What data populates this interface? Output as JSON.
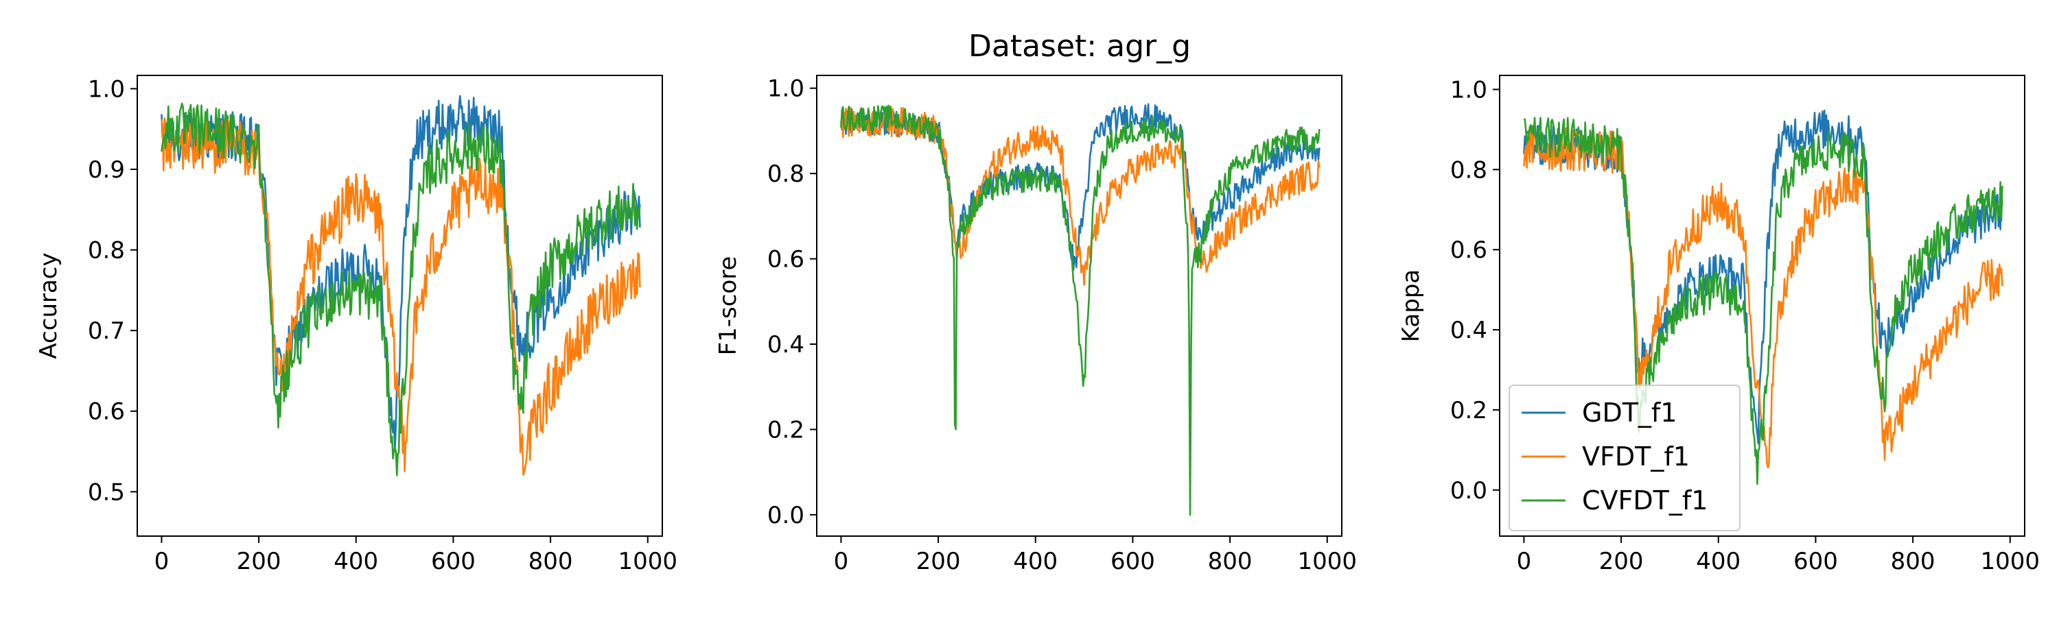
{
  "figure": {
    "suptitle": "Dataset: agr_g"
  },
  "chart_data": [
    {
      "type": "line",
      "title": "",
      "xlabel": "",
      "ylabel": "Accuracy",
      "xlim": [
        -50,
        1030
      ],
      "ylim": [
        0.445,
        1.0165
      ],
      "xticks": [
        0,
        200,
        400,
        600,
        800,
        1000
      ],
      "yticks": [
        0.5,
        0.6,
        0.7,
        0.8,
        0.9,
        1.0
      ],
      "xtick_labels": [
        "0",
        "200",
        "400",
        "600",
        "800",
        "1000"
      ],
      "ytick_labels": [
        "0.5",
        "0.6",
        "0.7",
        "0.8",
        "0.9",
        "1.0"
      ],
      "grid": false,
      "series": [
        {
          "name": "GDT_f1",
          "color": "#1f77b4",
          "noise": 0.032,
          "x": [
            0,
            50,
            100,
            150,
            200,
            220,
            235,
            250,
            300,
            350,
            400,
            450,
            480,
            500,
            520,
            550,
            600,
            650,
            700,
            720,
            740,
            760,
            800,
            850,
            900,
            950,
            985
          ],
          "y": [
            0.94,
            0.94,
            0.94,
            0.94,
            0.93,
            0.82,
            0.65,
            0.66,
            0.72,
            0.76,
            0.78,
            0.77,
            0.55,
            0.82,
            0.93,
            0.95,
            0.96,
            0.96,
            0.94,
            0.75,
            0.68,
            0.7,
            0.74,
            0.78,
            0.82,
            0.84,
            0.85
          ]
        },
        {
          "name": "VFDT_f1",
          "color": "#ff7f0e",
          "noise": 0.035,
          "x": [
            0,
            50,
            100,
            150,
            200,
            220,
            235,
            250,
            300,
            350,
            400,
            450,
            480,
            500,
            520,
            550,
            600,
            650,
            700,
            720,
            740,
            760,
            800,
            850,
            900,
            950,
            985
          ],
          "y": [
            0.93,
            0.93,
            0.93,
            0.93,
            0.92,
            0.8,
            0.64,
            0.63,
            0.78,
            0.83,
            0.87,
            0.84,
            0.65,
            0.56,
            0.7,
            0.78,
            0.85,
            0.88,
            0.88,
            0.75,
            0.55,
            0.57,
            0.63,
            0.68,
            0.73,
            0.76,
            0.77
          ]
        },
        {
          "name": "CVFDT_f1",
          "color": "#2ca02c",
          "noise": 0.032,
          "x": [
            0,
            50,
            100,
            150,
            200,
            220,
            235,
            250,
            300,
            350,
            400,
            450,
            480,
            500,
            520,
            550,
            600,
            650,
            700,
            720,
            740,
            760,
            800,
            850,
            900,
            950,
            985
          ],
          "y": [
            0.95,
            0.95,
            0.95,
            0.94,
            0.93,
            0.8,
            0.58,
            0.64,
            0.71,
            0.74,
            0.75,
            0.74,
            0.53,
            0.64,
            0.83,
            0.9,
            0.92,
            0.93,
            0.91,
            0.67,
            0.6,
            0.72,
            0.78,
            0.81,
            0.84,
            0.85,
            0.85
          ]
        }
      ]
    },
    {
      "type": "line",
      "title": "",
      "xlabel": "",
      "ylabel": "F1-score",
      "xlim": [
        -50,
        1030
      ],
      "ylim": [
        -0.05,
        1.03
      ],
      "xticks": [
        0,
        200,
        400,
        600,
        800,
        1000
      ],
      "yticks": [
        0.0,
        0.2,
        0.4,
        0.6,
        0.8,
        1.0
      ],
      "xtick_labels": [
        "0",
        "200",
        "400",
        "600",
        "800",
        "1000"
      ],
      "ytick_labels": [
        "0.0",
        "0.2",
        "0.4",
        "0.6",
        "0.8",
        "1.0"
      ],
      "grid": false,
      "series": [
        {
          "name": "GDT_f1",
          "color": "#1f77b4",
          "noise": 0.03,
          "x": [
            0,
            50,
            100,
            150,
            200,
            220,
            235,
            250,
            300,
            350,
            400,
            450,
            480,
            500,
            520,
            550,
            600,
            650,
            700,
            720,
            740,
            760,
            800,
            850,
            900,
            950,
            985
          ],
          "y": [
            0.92,
            0.92,
            0.92,
            0.91,
            0.9,
            0.8,
            0.62,
            0.7,
            0.77,
            0.79,
            0.8,
            0.79,
            0.58,
            0.72,
            0.88,
            0.92,
            0.94,
            0.93,
            0.9,
            0.7,
            0.65,
            0.69,
            0.74,
            0.79,
            0.84,
            0.86,
            0.86
          ]
        },
        {
          "name": "VFDT_f1",
          "color": "#ff7f0e",
          "noise": 0.035,
          "x": [
            0,
            50,
            100,
            150,
            200,
            220,
            235,
            250,
            300,
            350,
            400,
            450,
            480,
            500,
            520,
            550,
            600,
            650,
            700,
            720,
            740,
            760,
            800,
            850,
            900,
            950,
            985
          ],
          "y": [
            0.92,
            0.92,
            0.92,
            0.92,
            0.9,
            0.8,
            0.62,
            0.62,
            0.8,
            0.86,
            0.89,
            0.86,
            0.65,
            0.55,
            0.66,
            0.74,
            0.81,
            0.84,
            0.85,
            0.7,
            0.58,
            0.61,
            0.67,
            0.72,
            0.76,
            0.79,
            0.8
          ]
        },
        {
          "name": "CVFDT_f1",
          "color": "#2ca02c",
          "noise": 0.03,
          "x": [
            0,
            50,
            100,
            150,
            200,
            220,
            232,
            235,
            238,
            250,
            300,
            350,
            400,
            450,
            480,
            500,
            520,
            550,
            600,
            650,
            700,
            715,
            718,
            721,
            740,
            760,
            800,
            850,
            900,
            950,
            985
          ],
          "y": [
            0.93,
            0.93,
            0.93,
            0.92,
            0.9,
            0.78,
            0.6,
            0.0,
            0.62,
            0.68,
            0.76,
            0.78,
            0.79,
            0.78,
            0.55,
            0.3,
            0.75,
            0.87,
            0.9,
            0.91,
            0.88,
            0.6,
            0.0,
            0.58,
            0.62,
            0.72,
            0.8,
            0.84,
            0.87,
            0.88,
            0.88
          ]
        }
      ]
    },
    {
      "type": "line",
      "title": "",
      "xlabel": "",
      "ylabel": "Kappa",
      "xlim": [
        -50,
        1030
      ],
      "ylim": [
        -0.115,
        1.035
      ],
      "xticks": [
        0,
        200,
        400,
        600,
        800,
        1000
      ],
      "yticks": [
        0.0,
        0.2,
        0.4,
        0.6,
        0.8,
        1.0
      ],
      "xtick_labels": [
        "0",
        "200",
        "400",
        "600",
        "800",
        "1000"
      ],
      "ytick_labels": [
        "0.0",
        "0.2",
        "0.4",
        "0.6",
        "0.8",
        "1.0"
      ],
      "grid": false,
      "legend": {
        "placement": "lower-left",
        "entries": [
          "GDT_f1",
          "VFDT_f1",
          "CVFDT_f1"
        ]
      },
      "series": [
        {
          "name": "GDT_f1",
          "color": "#1f77b4",
          "noise": 0.05,
          "x": [
            0,
            50,
            100,
            150,
            200,
            220,
            235,
            250,
            300,
            350,
            400,
            450,
            480,
            500,
            520,
            550,
            600,
            650,
            700,
            720,
            740,
            760,
            800,
            850,
            900,
            950,
            985
          ],
          "y": [
            0.86,
            0.86,
            0.86,
            0.85,
            0.84,
            0.6,
            0.3,
            0.35,
            0.45,
            0.52,
            0.55,
            0.52,
            0.1,
            0.6,
            0.85,
            0.89,
            0.9,
            0.9,
            0.86,
            0.5,
            0.36,
            0.4,
            0.48,
            0.57,
            0.64,
            0.68,
            0.7
          ]
        },
        {
          "name": "VFDT_f1",
          "color": "#ff7f0e",
          "noise": 0.055,
          "x": [
            0,
            50,
            100,
            150,
            200,
            220,
            235,
            250,
            300,
            350,
            400,
            450,
            480,
            500,
            520,
            550,
            600,
            650,
            700,
            720,
            740,
            760,
            800,
            850,
            900,
            950,
            985
          ],
          "y": [
            0.85,
            0.85,
            0.85,
            0.85,
            0.84,
            0.6,
            0.28,
            0.3,
            0.55,
            0.66,
            0.72,
            0.66,
            0.25,
            0.05,
            0.4,
            0.58,
            0.7,
            0.75,
            0.76,
            0.5,
            0.12,
            0.15,
            0.26,
            0.36,
            0.45,
            0.52,
            0.53
          ]
        },
        {
          "name": "CVFDT_f1",
          "color": "#2ca02c",
          "noise": 0.05,
          "x": [
            0,
            50,
            100,
            150,
            200,
            220,
            235,
            250,
            300,
            350,
            400,
            450,
            480,
            500,
            520,
            550,
            600,
            650,
            700,
            720,
            740,
            760,
            800,
            850,
            900,
            950,
            985
          ],
          "y": [
            0.88,
            0.88,
            0.88,
            0.87,
            0.85,
            0.6,
            0.18,
            0.25,
            0.42,
            0.48,
            0.5,
            0.47,
            0.05,
            0.25,
            0.68,
            0.8,
            0.84,
            0.85,
            0.82,
            0.35,
            0.22,
            0.45,
            0.55,
            0.62,
            0.68,
            0.71,
            0.72
          ]
        }
      ]
    }
  ]
}
